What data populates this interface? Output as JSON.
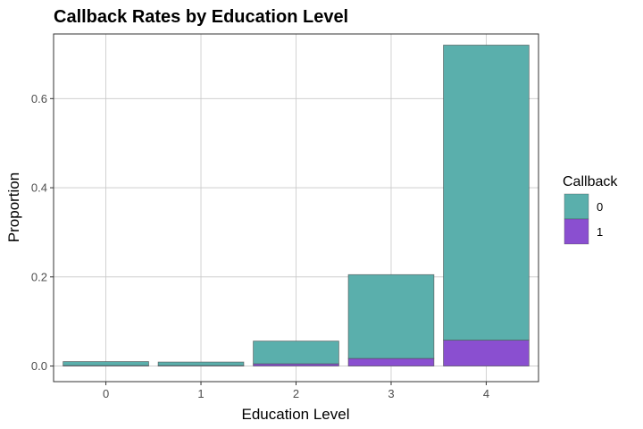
{
  "chart_data": {
    "type": "bar",
    "stacked": true,
    "title": "Callback Rates by Education Level",
    "xlabel": "Education Level",
    "ylabel": "Proportion",
    "categories": [
      "0",
      "1",
      "2",
      "3",
      "4"
    ],
    "ylim": [
      -0.035,
      0.745
    ],
    "yticks": [
      0.0,
      0.2,
      0.4,
      0.6
    ],
    "ytick_labels": [
      "0.0",
      "0.2",
      "0.4",
      "0.6"
    ],
    "grid": true,
    "legend": {
      "title": "Callback",
      "position": "right"
    },
    "series": [
      {
        "name": "0",
        "color": "#5aafac",
        "values": [
          0.009,
          0.008,
          0.051,
          0.188,
          0.662
        ]
      },
      {
        "name": "1",
        "color": "#8a4fd0",
        "values": [
          0.001,
          0.001,
          0.005,
          0.017,
          0.058
        ]
      }
    ]
  }
}
